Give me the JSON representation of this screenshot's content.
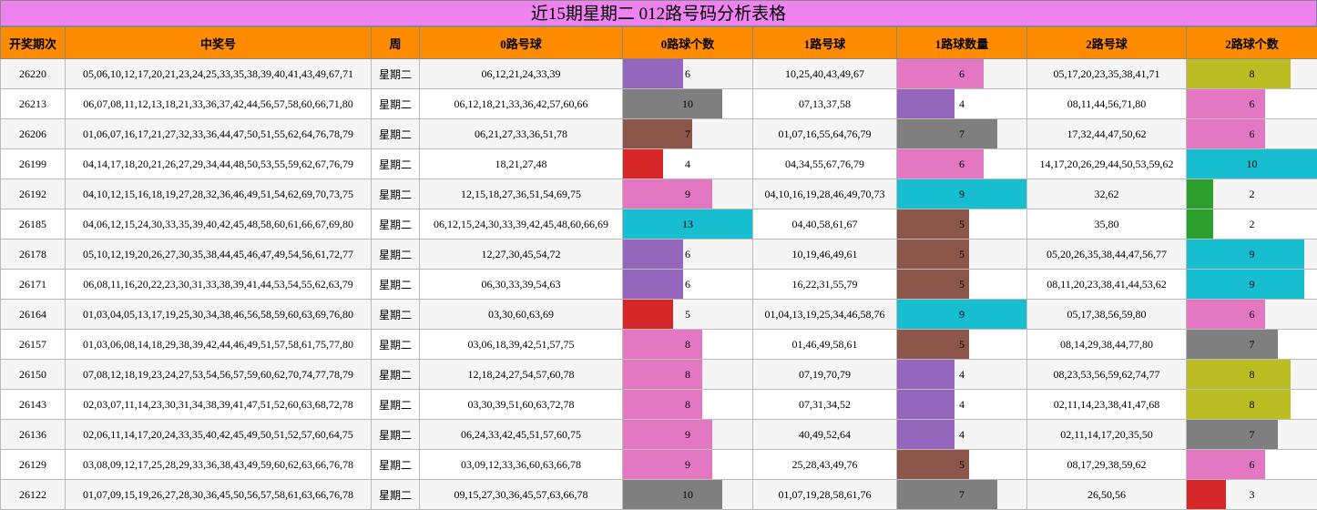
{
  "title": "近15期星期二 012路号码分析表格",
  "table": {
    "headers": [
      "开奖期次",
      "中奖号",
      "周",
      "0路号球",
      "0路球个数",
      "1路号球",
      "1路球数量",
      "2路号球",
      "2路球个数"
    ],
    "rows": [
      [
        "26220",
        "05,06,10,12,17,20,21,23,24,25,33,35,38,39,40,41,43,49,67,71",
        "星期二",
        "06,12,21,24,33,39",
        6,
        "10,25,40,43,49,67",
        6,
        "05,17,20,23,35,38,41,71",
        8
      ],
      [
        "26213",
        "06,07,08,11,12,13,18,21,33,36,37,42,44,56,57,58,60,66,71,80",
        "星期二",
        "06,12,18,21,33,36,42,57,60,66",
        10,
        "07,13,37,58",
        4,
        "08,11,44,56,71,80",
        6
      ],
      [
        "26206",
        "01,06,07,16,17,21,27,32,33,36,44,47,50,51,55,62,64,76,78,79",
        "星期二",
        "06,21,27,33,36,51,78",
        7,
        "01,07,16,55,64,76,79",
        7,
        "17,32,44,47,50,62",
        6
      ],
      [
        "26199",
        "04,14,17,18,20,21,26,27,29,34,44,48,50,53,55,59,62,67,76,79",
        "星期二",
        "18,21,27,48",
        4,
        "04,34,55,67,76,79",
        6,
        "14,17,20,26,29,44,50,53,59,62",
        10
      ],
      [
        "26192",
        "04,10,12,15,16,18,19,27,28,32,36,46,49,51,54,62,69,70,73,75",
        "星期二",
        "12,15,18,27,36,51,54,69,75",
        9,
        "04,10,16,19,28,46,49,70,73",
        9,
        "32,62",
        2
      ],
      [
        "26185",
        "04,06,12,15,24,30,33,35,39,40,42,45,48,58,60,61,66,67,69,80",
        "星期二",
        "06,12,15,24,30,33,39,42,45,48,60,66,69",
        13,
        "04,40,58,61,67",
        5,
        "35,80",
        2
      ],
      [
        "26178",
        "05,10,12,19,20,26,27,30,35,38,44,45,46,47,49,54,56,61,72,77",
        "星期二",
        "12,27,30,45,54,72",
        6,
        "10,19,46,49,61",
        5,
        "05,20,26,35,38,44,47,56,77",
        9
      ],
      [
        "26171",
        "06,08,11,16,20,22,23,30,31,33,38,39,41,44,53,54,55,62,63,79",
        "星期二",
        "06,30,33,39,54,63",
        6,
        "16,22,31,55,79",
        5,
        "08,11,20,23,38,41,44,53,62",
        9
      ],
      [
        "26164",
        "01,03,04,05,13,17,19,25,30,34,38,46,56,58,59,60,63,69,76,80",
        "星期二",
        "03,30,60,63,69",
        5,
        "01,04,13,19,25,34,46,58,76",
        9,
        "05,17,38,56,59,80",
        6
      ],
      [
        "26157",
        "01,03,06,08,14,18,29,38,39,42,44,46,49,51,57,58,61,75,77,80",
        "星期二",
        "03,06,18,39,42,51,57,75",
        8,
        "01,46,49,58,61",
        5,
        "08,14,29,38,44,77,80",
        7
      ],
      [
        "26150",
        "07,08,12,18,19,23,24,27,53,54,56,57,59,60,62,70,74,77,78,79",
        "星期二",
        "12,18,24,27,54,57,60,78",
        8,
        "07,19,70,79",
        4,
        "08,23,53,56,59,62,74,77",
        8
      ],
      [
        "26143",
        "02,03,07,11,14,23,30,31,34,38,39,41,47,51,52,60,63,68,72,78",
        "星期二",
        "03,30,39,51,60,63,72,78",
        8,
        "07,31,34,52",
        4,
        "02,11,14,23,38,41,47,68",
        8
      ],
      [
        "26136",
        "02,06,11,14,17,20,24,33,35,40,42,45,49,50,51,52,57,60,64,75",
        "星期二",
        "06,24,33,42,45,51,57,60,75",
        9,
        "40,49,52,64",
        4,
        "02,11,14,17,20,35,50",
        7
      ],
      [
        "26129",
        "03,08,09,12,17,25,28,29,33,36,38,43,49,59,60,62,63,66,76,78",
        "星期二",
        "03,09,12,33,36,60,63,66,78",
        9,
        "25,28,43,49,76",
        5,
        "08,17,29,38,59,62",
        6
      ],
      [
        "26122",
        "01,07,09,15,19,26,27,28,30,36,45,50,56,57,58,61,63,66,76,78",
        "星期二",
        "09,15,27,30,36,45,57,63,66,78",
        10,
        "01,07,19,28,58,61,76",
        7,
        "26,50,56",
        3
      ]
    ],
    "bar_colors": [
      [
        "#9467bd",
        "#e377c2",
        "#bcbd22"
      ],
      [
        "#7f7f7f",
        "#9467bd",
        "#e377c2"
      ],
      [
        "#8c564b",
        "#7f7f7f",
        "#e377c2"
      ],
      [
        "#d62728",
        "#e377c2",
        "#17becf"
      ],
      [
        "#e377c2",
        "#17becf",
        "#2ca02c"
      ],
      [
        "#17becf",
        "#8c564b",
        "#2ca02c"
      ],
      [
        "#9467bd",
        "#8c564b",
        "#17becf"
      ],
      [
        "#9467bd",
        "#8c564b",
        "#17becf"
      ],
      [
        "#d62728",
        "#17becf",
        "#e377c2"
      ],
      [
        "#e377c2",
        "#8c564b",
        "#7f7f7f"
      ],
      [
        "#e377c2",
        "#9467bd",
        "#bcbd22"
      ],
      [
        "#e377c2",
        "#9467bd",
        "#bcbd22"
      ],
      [
        "#e377c2",
        "#9467bd",
        "#7f7f7f"
      ],
      [
        "#e377c2",
        "#8c564b",
        "#e377c2"
      ],
      [
        "#7f7f7f",
        "#7f7f7f",
        "#d62728"
      ]
    ]
  }
}
